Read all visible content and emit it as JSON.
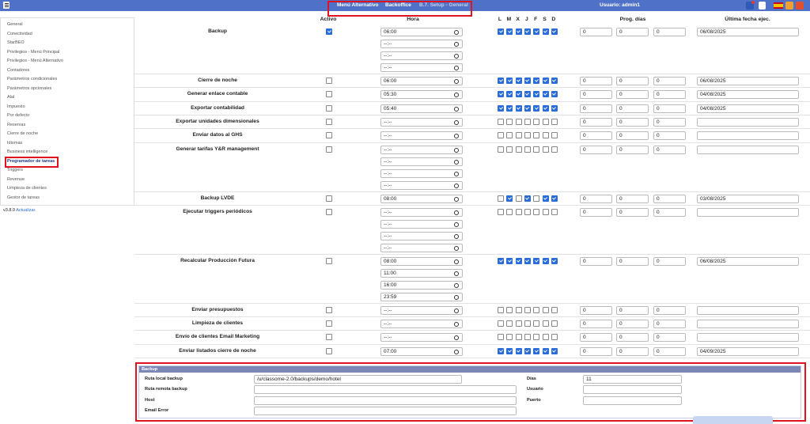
{
  "topbar": {
    "menu_items": [
      "Menú Alternativo",
      "Backoffice",
      "B.7. Setup - General"
    ],
    "user": "Usuario: admin1"
  },
  "sidebar": {
    "items": [
      "General",
      "Conectividad",
      "StarBEO",
      "Privilegios - Menú Principal",
      "Privilegios - Menú Alternativo",
      "Contadores",
      "Parámetros condicionales",
      "Parámetros opcionales",
      "Alal",
      "Impuesto",
      "Por defecto",
      "Reservas",
      "Cierre de noche",
      "Idiomas",
      "Business intelligence",
      "Programador de tareas",
      "Triggers",
      "Revenue",
      "Limpieza de clientes",
      "Gestor de tareas"
    ],
    "active_index": 15,
    "version": "v3.8.0",
    "update_link": "Actualizar."
  },
  "table": {
    "headers": {
      "active": "Activo",
      "time": "Hora",
      "days": [
        "L",
        "M",
        "X",
        "J",
        "F",
        "S",
        "D"
      ],
      "prog": "Prog. días",
      "last": "Última fecha ejec."
    },
    "rows": [
      {
        "name": "Backup",
        "active": true,
        "times": [
          "06:00",
          "--:--",
          "--:--",
          "--:--"
        ],
        "days": [
          true,
          true,
          true,
          true,
          true,
          true,
          true
        ],
        "prog": [
          0,
          0,
          0
        ],
        "last": "06/08/2025"
      },
      {
        "name": "Cierre de noche",
        "active": false,
        "times": [
          "06:00"
        ],
        "days": [
          true,
          true,
          true,
          true,
          true,
          true,
          true
        ],
        "prog": [
          0,
          0,
          0
        ],
        "last": "06/08/2025"
      },
      {
        "name": "Generar enlace contable",
        "active": false,
        "times": [
          "05:30"
        ],
        "days": [
          true,
          true,
          true,
          true,
          true,
          true,
          true
        ],
        "prog": [
          0,
          0,
          0
        ],
        "last": "04/08/2025"
      },
      {
        "name": "Exportar contabilidad",
        "active": false,
        "times": [
          "05:40"
        ],
        "days": [
          true,
          true,
          true,
          true,
          true,
          true,
          true
        ],
        "prog": [
          0,
          0,
          0
        ],
        "last": "04/08/2025"
      },
      {
        "name": "Exportar unidades dimensionales",
        "active": false,
        "times": [
          "--:--"
        ],
        "days": [
          false,
          false,
          false,
          false,
          false,
          false,
          false
        ],
        "prog": [
          0,
          0,
          0
        ],
        "last": null
      },
      {
        "name": "Enviar datos al GHS",
        "active": false,
        "times": [
          "--:--"
        ],
        "days": [
          false,
          false,
          false,
          false,
          false,
          false,
          false
        ],
        "prog": [
          0,
          0,
          0
        ],
        "last": null
      },
      {
        "name": "Generar tarifas Y&R management",
        "active": false,
        "times": [
          "--:--",
          "--:--",
          "--:--",
          "--:--"
        ],
        "days": [
          false,
          false,
          false,
          false,
          false,
          false,
          false
        ],
        "prog": [
          0,
          0,
          0
        ],
        "last": null
      },
      {
        "name": "Backup LVDE",
        "active": false,
        "times": [
          "08:00"
        ],
        "days": [
          false,
          true,
          false,
          true,
          false,
          true,
          true
        ],
        "prog": [
          0,
          0,
          0
        ],
        "last": "03/08/2025"
      },
      {
        "name": "Ejecutar triggers periódicos",
        "active": false,
        "times": [
          "--:--",
          "--:--",
          "--:--",
          "--:--"
        ],
        "days": [
          false,
          false,
          false,
          false,
          false,
          false,
          false
        ],
        "prog": [
          0,
          0,
          0
        ],
        "last": null
      },
      {
        "name": "Recalcular Producción Futura",
        "active": false,
        "times": [
          "08:00",
          "11:00",
          "16:00",
          "23:59"
        ],
        "days": [
          true,
          true,
          true,
          true,
          true,
          true,
          true
        ],
        "prog": [
          0,
          0,
          0
        ],
        "last": "06/08/2025"
      },
      {
        "name": "Enviar presupuestos",
        "active": false,
        "times": [
          "--:--"
        ],
        "days": [
          false,
          false,
          false,
          false,
          false,
          false,
          false
        ],
        "prog": [
          0,
          0,
          0
        ],
        "last": null
      },
      {
        "name": "Limpieza de clientes",
        "active": false,
        "times": [
          "--:--"
        ],
        "days": [
          false,
          false,
          false,
          false,
          false,
          false,
          false
        ],
        "prog": [
          0,
          0,
          0
        ],
        "last": null
      },
      {
        "name": "Envío de clientes Email Marketing",
        "active": false,
        "times": [
          "--:--"
        ],
        "days": [
          false,
          false,
          false,
          false,
          false,
          false,
          false
        ],
        "prog": [
          0,
          0,
          0
        ],
        "last": null
      },
      {
        "name": "Enviar listados cierre de noche",
        "active": false,
        "times": [
          "07:00"
        ],
        "days": [
          true,
          true,
          true,
          true,
          true,
          true,
          true
        ],
        "prog": [
          0,
          0,
          0
        ],
        "last": "04/09/2025"
      }
    ]
  },
  "backup_panel": {
    "title": "Backup",
    "left_fields": [
      {
        "label": "Ruta local backup",
        "value": "/u/classome-2.0/backups/demo/hotel"
      },
      {
        "label": "Ruta remota backup",
        "value": null
      },
      {
        "label": "Host",
        "value": null
      },
      {
        "label": "Email Error",
        "value": null
      }
    ],
    "right_fields": [
      {
        "label": "Días",
        "value": 11
      },
      {
        "label": "Usuario",
        "value": null
      },
      {
        "label": "Puerto",
        "value": null
      }
    ]
  }
}
